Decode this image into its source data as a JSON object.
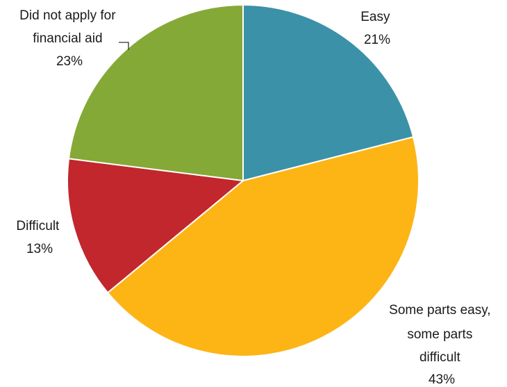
{
  "chart_data": {
    "type": "pie",
    "title": "",
    "slices": [
      {
        "name": "Easy",
        "value": 21,
        "label": "21%",
        "color": "#3A91A8"
      },
      {
        "name": "Some parts easy, some parts difficult",
        "value": 43,
        "label": "43%",
        "color": "#FDB515"
      },
      {
        "name": "Difficult",
        "value": 13,
        "label": "13%",
        "color": "#C1272D"
      },
      {
        "name": "Did not apply for financial aid",
        "value": 23,
        "label": "23%",
        "color": "#85A936"
      }
    ],
    "start_angle": "12 o'clock",
    "direction": "clockwise",
    "legend": "none"
  }
}
